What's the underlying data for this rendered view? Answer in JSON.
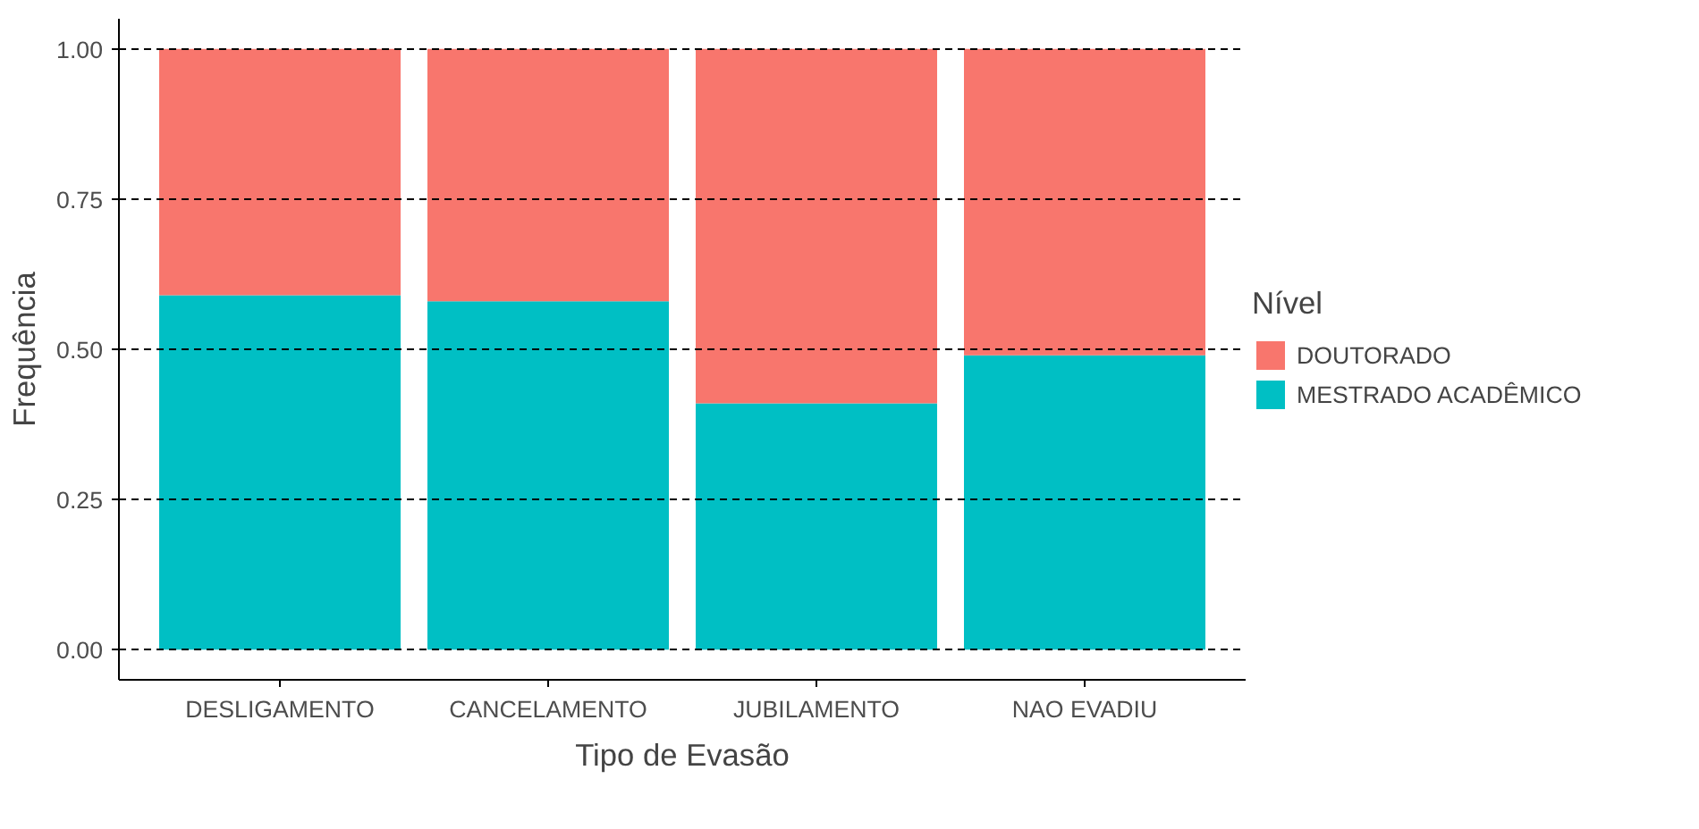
{
  "chart_data": {
    "type": "bar",
    "stacked": true,
    "xlabel": "Tipo de Evasão",
    "ylabel": "Frequência",
    "legend_title": "Nível",
    "legend": "right",
    "grid": "y",
    "categories": [
      "DESLIGAMENTO",
      "CANCELAMENTO",
      "JUBILAMENTO",
      "NAO EVADIU"
    ],
    "series": [
      {
        "name": "MESTRADO ACADÊMICO",
        "color": "#00bfc4",
        "values": [
          0.59,
          0.58,
          0.41,
          0.49
        ]
      },
      {
        "name": "DOUTORADO",
        "color": "#f8766d",
        "values": [
          0.41,
          0.42,
          0.59,
          0.51
        ]
      }
    ],
    "ylim": [
      -0.05,
      1.05
    ],
    "yticks": [
      {
        "value": 0,
        "label": "0.00"
      },
      {
        "value": 0.25,
        "label": "0.25"
      },
      {
        "value": 0.5,
        "label": "0.50"
      },
      {
        "value": 0.75,
        "label": "0.75"
      },
      {
        "value": 1,
        "label": "1.00"
      }
    ]
  }
}
